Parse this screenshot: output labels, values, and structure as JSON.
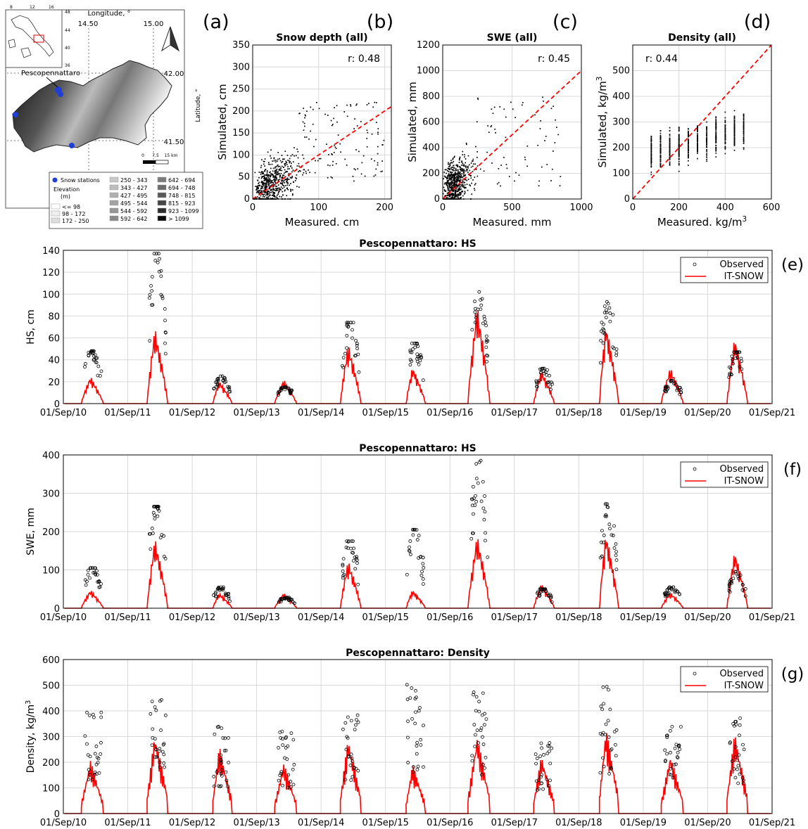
{
  "colors": {
    "observed_marker": "#000000",
    "model_line": "#ff0000",
    "station_dot": "#1f3fd6",
    "grid": "#d9d9d9"
  },
  "map": {
    "panel_label": "(a)",
    "longitude_title": "Longitude, °",
    "latitude_title": "Latitude, °",
    "lon_ticks": [
      "14.50",
      "15.00"
    ],
    "lat_ticks": [
      "42.00",
      "41.50"
    ],
    "inset_ticks_top": [
      "8",
      "12",
      "16"
    ],
    "inset_ticks_right": [
      "48",
      "44",
      "40",
      "36"
    ],
    "station_label": "Pescopennattaro",
    "scale_ticks": [
      "0",
      "7,5",
      "15 km"
    ],
    "legend_station": "Snow stations",
    "legend_elev_title": "Elevation",
    "legend_elev_unit": "(m)",
    "elevation_classes": [
      "<= 98",
      "98 - 172",
      "172 - 250",
      "250 - 343",
      "343 - 427",
      "427 - 495",
      "495 - 544",
      "544 - 592",
      "592 - 642",
      "642 - 694",
      "694 - 748",
      "748 - 815",
      "815 - 923",
      "923 - 1099",
      "> 1099"
    ],
    "north_arrow": "north-arrow-icon"
  },
  "chart_data": [
    {
      "type": "scatter",
      "panel_label": "(b)",
      "title": "Snow depth (all)",
      "xlabel": "Measured. cm",
      "ylabel": "Simulated, cm",
      "xlim": [
        0,
        210
      ],
      "ylim": [
        0,
        350
      ],
      "xticks": [
        0,
        100,
        200
      ],
      "yticks": [
        0,
        50,
        100,
        150,
        200,
        250,
        300,
        350
      ],
      "r_label": "r: 0.48",
      "grid": true,
      "one_to_one_line": true
    },
    {
      "type": "scatter",
      "panel_label": "(c)",
      "title": "SWE (all)",
      "xlabel": "Measured. mm",
      "ylabel": "Simulated, mm",
      "xlim": [
        0,
        1000
      ],
      "ylim": [
        0,
        1200
      ],
      "xticks": [
        0,
        500,
        1000
      ],
      "yticks": [
        0,
        200,
        400,
        600,
        800,
        1000,
        1200
      ],
      "r_label": "r: 0.45",
      "grid": true,
      "one_to_one_line": true
    },
    {
      "type": "scatter",
      "panel_label": "(d)",
      "title": "Density (all)",
      "xlabel": "Measured. kg/m³",
      "ylabel": "Simulated, kg/m³",
      "xlim": [
        0,
        600
      ],
      "ylim": [
        0,
        600
      ],
      "xticks": [
        0,
        200,
        400,
        600
      ],
      "yticks": [
        0,
        100,
        200,
        300,
        400,
        500
      ],
      "r_label": "r: 0.44",
      "grid": true,
      "one_to_one_line": true
    },
    {
      "type": "line",
      "panel_label": "(e)",
      "title": "Pescopennattaro: HS",
      "ylabel": "HS, cm",
      "ylim": [
        0,
        140
      ],
      "yticks": [
        0,
        20,
        40,
        60,
        80,
        100,
        120,
        140
      ],
      "x_tick_labels": [
        "01/Sep/10",
        "01/Sep/11",
        "01/Sep/12",
        "01/Sep/13",
        "01/Sep/14",
        "01/Sep/15",
        "01/Sep/16",
        "01/Sep/17",
        "01/Sep/18",
        "01/Sep/19",
        "01/Sep/20",
        "01/Sep/21"
      ],
      "legend": [
        "Observed",
        "IT-SNOW"
      ],
      "legend_position": "top-right",
      "series": [
        {
          "name": "Observed",
          "kind": "markers",
          "season_peaks": [
            48,
            137,
            25,
            15,
            74,
            55,
            102,
            32,
            93,
            21,
            47
          ]
        },
        {
          "name": "IT-SNOW",
          "kind": "line",
          "season_peaks": [
            25,
            70,
            21,
            22,
            55,
            34,
            91,
            31,
            74,
            33,
            61
          ]
        }
      ]
    },
    {
      "type": "line",
      "panel_label": "(f)",
      "title": "Pescopennattaro: HS",
      "ylabel": "SWE, mm",
      "ylim": [
        0,
        400
      ],
      "yticks": [
        0,
        100,
        200,
        300,
        400
      ],
      "x_tick_labels": [
        "01/Sep/10",
        "01/Sep/11",
        "01/Sep/12",
        "01/Sep/13",
        "01/Sep/14",
        "01/Sep/15",
        "01/Sep/16",
        "01/Sep/17",
        "01/Sep/18",
        "01/Sep/19",
        "01/Sep/20",
        "01/Sep/21"
      ],
      "legend": [
        "Observed",
        "IT-SNOW"
      ],
      "legend_position": "top-right",
      "series": [
        {
          "name": "Observed",
          "kind": "markers",
          "season_peaks": [
            105,
            265,
            55,
            28,
            175,
            205,
            385,
            50,
            272,
            55,
            95
          ]
        },
        {
          "name": "IT-SNOW",
          "kind": "line",
          "season_peaks": [
            48,
            185,
            40,
            40,
            125,
            48,
            193,
            65,
            200,
            42,
            150
          ]
        }
      ]
    },
    {
      "type": "line",
      "panel_label": "(g)",
      "title": "Pescopennattaro: Density",
      "ylabel": "Density, kg/m³",
      "ylim": [
        0,
        600
      ],
      "yticks": [
        0,
        100,
        200,
        300,
        400,
        500,
        600
      ],
      "x_tick_labels": [
        "01/Sep/10",
        "01/Sep/11",
        "01/Sep/12",
        "01/Sep/13",
        "01/Sep/14",
        "01/Sep/15",
        "01/Sep/16",
        "01/Sep/17",
        "01/Sep/18",
        "01/Sep/19",
        "01/Sep/20",
        "01/Sep/21"
      ],
      "legend": [
        "Observed",
        "IT-SNOW"
      ],
      "legend_position": "top-right",
      "series": [
        {
          "name": "Observed",
          "kind": "markers",
          "season_peaks": [
            400,
            480,
            340,
            320,
            420,
            520,
            480,
            300,
            500,
            360,
            380
          ]
        },
        {
          "name": "IT-SNOW",
          "kind": "line",
          "season_peaks": [
            210,
            320,
            265,
            200,
            300,
            195,
            310,
            230,
            335,
            235,
            320
          ]
        }
      ]
    }
  ]
}
